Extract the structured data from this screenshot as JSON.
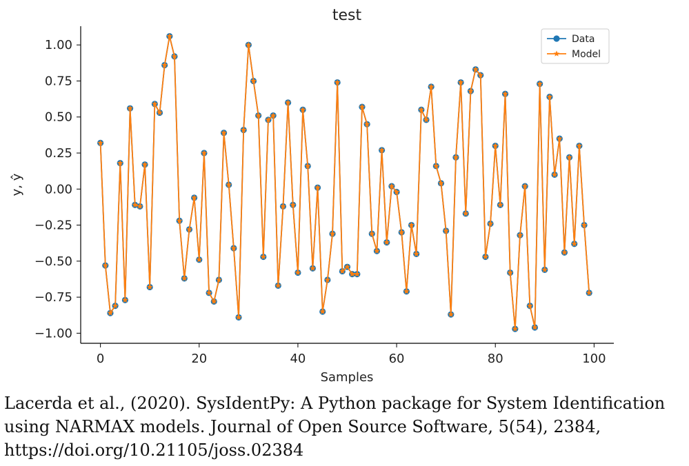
{
  "chart_data": {
    "type": "line",
    "title": "test",
    "xlabel": "Samples",
    "ylabel": "y, ŷ",
    "xlim": [
      -4,
      104
    ],
    "ylim": [
      -1.07,
      1.13
    ],
    "xticks": [
      0,
      20,
      40,
      60,
      80,
      100
    ],
    "yticks": [
      1.0,
      0.75,
      0.5,
      0.25,
      0.0,
      -0.25,
      -0.5,
      -0.75,
      -1.0
    ],
    "ytick_labels": [
      "1.00",
      "0.75",
      "0.50",
      "0.25",
      "0.00",
      "−0.25",
      "−0.50",
      "−0.75",
      "−1.00"
    ],
    "grid": false,
    "legend_position": "top-right",
    "x": [
      0,
      1,
      2,
      3,
      4,
      5,
      6,
      7,
      8,
      9,
      10,
      11,
      12,
      13,
      14,
      15,
      16,
      17,
      18,
      19,
      20,
      21,
      22,
      23,
      24,
      25,
      26,
      27,
      28,
      29,
      30,
      31,
      32,
      33,
      34,
      35,
      36,
      37,
      38,
      39,
      40,
      41,
      42,
      43,
      44,
      45,
      46,
      47,
      48,
      49,
      50,
      51,
      52,
      53,
      54,
      55,
      56,
      57,
      58,
      59,
      60,
      61,
      62,
      63,
      64,
      65,
      66,
      67,
      68,
      69,
      70,
      71,
      72,
      73,
      74,
      75,
      76,
      77,
      78,
      79,
      80,
      81,
      82,
      83,
      84,
      85,
      86,
      87,
      88,
      89,
      90,
      91,
      92,
      93,
      94,
      95,
      96,
      97,
      98,
      99
    ],
    "series": [
      {
        "name": "Data",
        "color": "#1f77b4",
        "marker": "circle",
        "values": [
          0.32,
          -0.53,
          -0.86,
          -0.81,
          0.18,
          -0.77,
          0.56,
          -0.11,
          -0.12,
          0.17,
          -0.68,
          0.59,
          0.53,
          0.86,
          1.06,
          0.92,
          -0.22,
          -0.62,
          -0.28,
          -0.06,
          -0.49,
          0.25,
          -0.72,
          -0.78,
          -0.63,
          0.39,
          0.03,
          -0.41,
          -0.89,
          0.41,
          1.0,
          0.75,
          0.51,
          -0.47,
          0.48,
          0.51,
          -0.67,
          -0.12,
          0.6,
          -0.11,
          -0.58,
          0.55,
          0.16,
          -0.55,
          0.01,
          -0.85,
          -0.63,
          -0.31,
          0.74,
          -0.57,
          -0.54,
          -0.59,
          -0.59,
          0.57,
          0.45,
          -0.31,
          -0.43,
          0.27,
          -0.37,
          0.02,
          -0.02,
          -0.3,
          -0.71,
          -0.25,
          -0.45,
          0.55,
          0.48,
          0.71,
          0.16,
          0.04,
          -0.29,
          -0.87,
          0.22,
          0.74,
          -0.17,
          0.68,
          0.83,
          0.79,
          -0.47,
          -0.24,
          0.3,
          -0.11,
          0.66,
          -0.58,
          -0.97,
          -0.32,
          0.02,
          -0.81,
          -0.96,
          0.73,
          -0.56,
          0.64,
          0.1,
          0.35,
          -0.44,
          0.22,
          -0.38,
          0.3,
          -0.25,
          -0.72
        ]
      },
      {
        "name": "Model",
        "color": "#ff7f0e",
        "marker": "star",
        "values": [
          0.32,
          -0.53,
          -0.86,
          -0.81,
          0.18,
          -0.77,
          0.56,
          -0.11,
          -0.12,
          0.17,
          -0.68,
          0.59,
          0.53,
          0.86,
          1.06,
          0.92,
          -0.22,
          -0.62,
          -0.28,
          -0.06,
          -0.49,
          0.25,
          -0.72,
          -0.78,
          -0.63,
          0.39,
          0.03,
          -0.41,
          -0.89,
          0.41,
          1.0,
          0.75,
          0.51,
          -0.47,
          0.48,
          0.51,
          -0.67,
          -0.12,
          0.6,
          -0.11,
          -0.58,
          0.55,
          0.16,
          -0.55,
          0.01,
          -0.85,
          -0.63,
          -0.31,
          0.74,
          -0.57,
          -0.54,
          -0.59,
          -0.59,
          0.57,
          0.45,
          -0.31,
          -0.43,
          0.27,
          -0.37,
          0.02,
          -0.02,
          -0.3,
          -0.71,
          -0.25,
          -0.45,
          0.55,
          0.48,
          0.71,
          0.16,
          0.04,
          -0.29,
          -0.87,
          0.22,
          0.74,
          -0.17,
          0.68,
          0.83,
          0.79,
          -0.47,
          -0.24,
          0.3,
          -0.11,
          0.66,
          -0.58,
          -0.97,
          -0.32,
          0.02,
          -0.81,
          -0.96,
          0.73,
          -0.56,
          0.64,
          0.1,
          0.35,
          -0.44,
          0.22,
          -0.38,
          0.3,
          -0.25,
          -0.72
        ]
      }
    ]
  },
  "caption": {
    "line1": "Lacerda et al., (2020). SysIdentPy: A Python package for System Identification",
    "line2": "using NARMAX models. Journal of Open Source Software, 5(54), 2384,",
    "line3": "https://doi.org/10.21105/joss.02384"
  }
}
